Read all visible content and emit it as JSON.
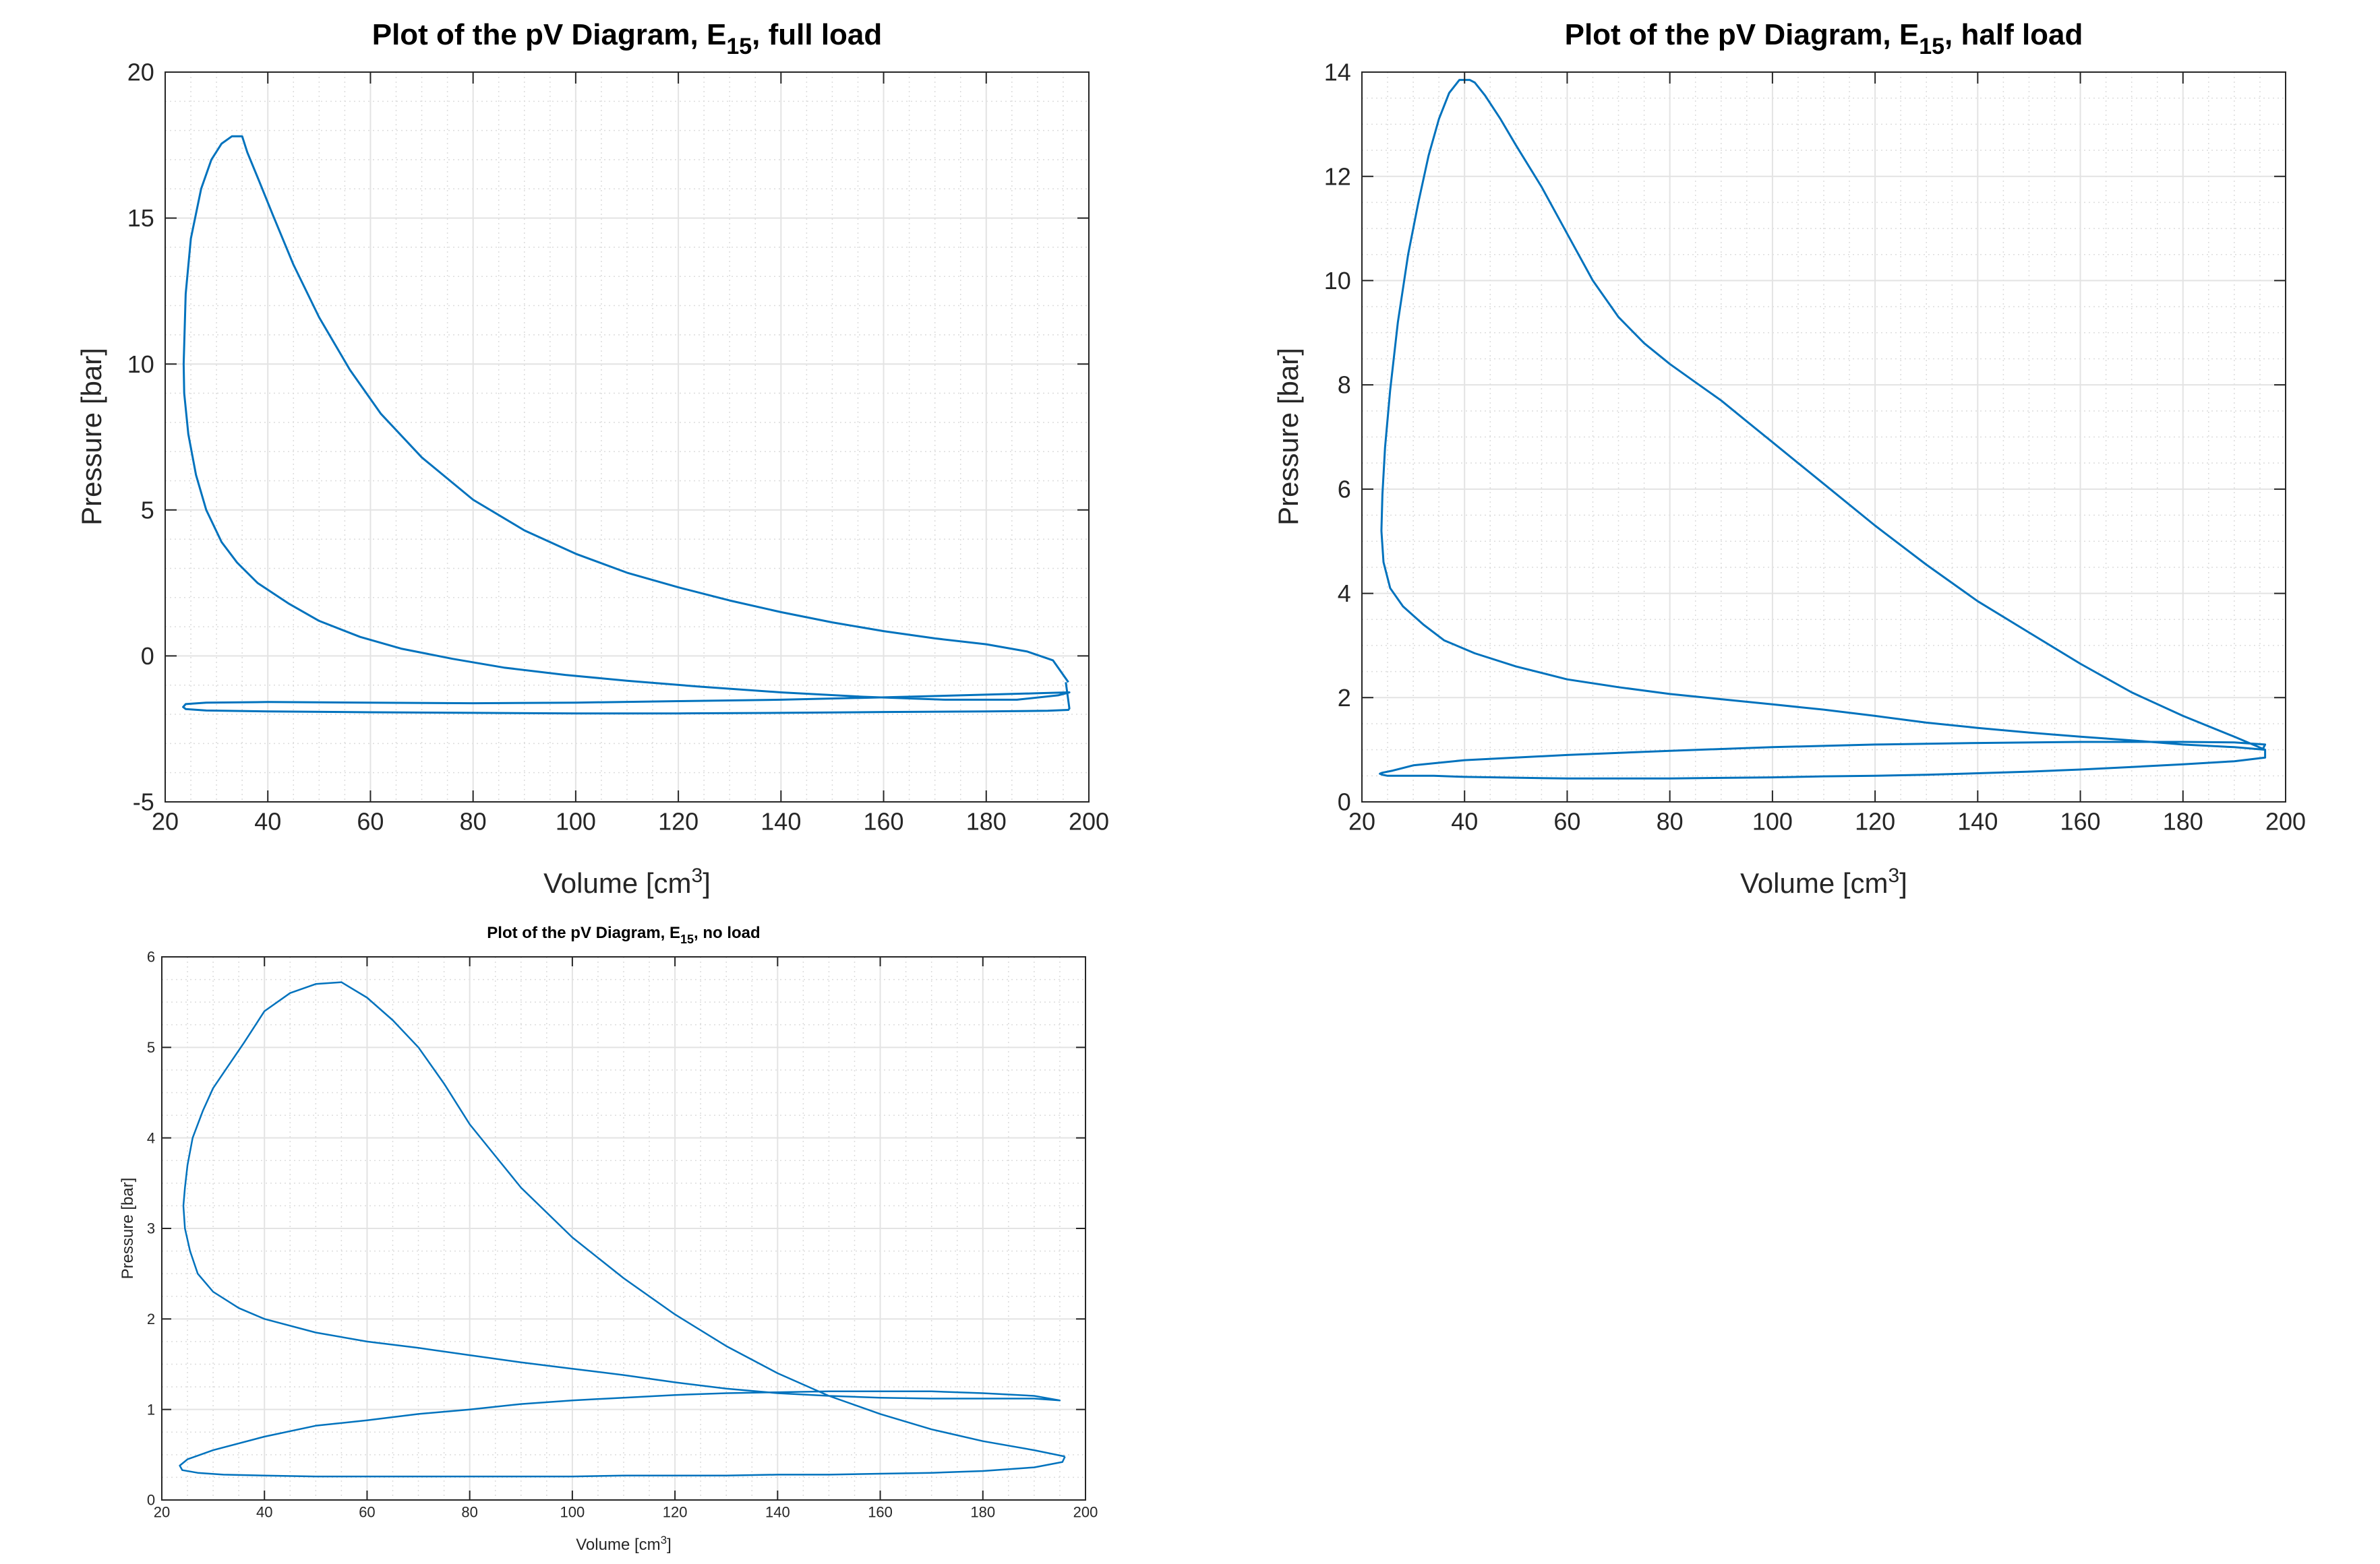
{
  "chart_data": [
    {
      "type": "line",
      "title": "Plot of the pV Diagram, E",
      "title_sub": "15",
      "title_suffix": ", full load",
      "xlabel": "Volume [cm",
      "xlabel_sup": "3",
      "xlabel_suffix": "]",
      "ylabel": "Pressure [bar]",
      "xlim": [
        20,
        200
      ],
      "ylim": [
        -5,
        20
      ],
      "xticks": [
        20,
        40,
        60,
        80,
        100,
        120,
        140,
        160,
        180,
        200
      ],
      "yticks": [
        -5,
        0,
        5,
        10,
        15,
        20
      ],
      "xminor": 5,
      "yminor": 1,
      "grid": true,
      "series": [
        {
          "color": "#0072bd",
          "x": [
            196,
            193,
            188,
            180,
            170,
            160,
            150,
            140,
            130,
            120,
            110,
            100,
            90,
            80,
            70,
            62,
            56,
            50,
            45,
            41,
            38,
            36,
            35,
            33,
            31,
            29,
            27,
            25,
            24,
            23.6,
            23.7,
            24.5,
            26,
            28,
            31,
            34,
            38,
            44,
            50,
            58,
            66,
            76,
            86,
            98,
            110,
            124,
            140,
            156,
            172,
            186,
            194,
            196.2,
            196,
            190,
            175,
            160,
            140,
            120,
            100,
            80,
            60,
            40,
            28,
            24,
            23.5,
            24,
            28,
            40,
            60,
            80,
            100,
            120,
            140,
            160,
            180,
            192,
            196,
            196.2,
            195.5
          ],
          "y": [
            -0.9,
            -0.15,
            0.15,
            0.4,
            0.6,
            0.85,
            1.15,
            1.5,
            1.9,
            2.35,
            2.85,
            3.5,
            4.3,
            5.35,
            6.8,
            8.3,
            9.8,
            11.6,
            13.4,
            15.1,
            16.4,
            17.25,
            17.8,
            17.8,
            17.55,
            17.0,
            16.0,
            14.3,
            12.4,
            10.0,
            9.0,
            7.6,
            6.2,
            5.0,
            3.9,
            3.2,
            2.5,
            1.8,
            1.2,
            0.65,
            0.25,
            -0.1,
            -0.4,
            -0.65,
            -0.85,
            -1.05,
            -1.25,
            -1.4,
            -1.5,
            -1.5,
            -1.35,
            -1.25,
            -1.25,
            -1.28,
            -1.35,
            -1.42,
            -1.5,
            -1.55,
            -1.6,
            -1.62,
            -1.6,
            -1.58,
            -1.6,
            -1.65,
            -1.75,
            -1.82,
            -1.87,
            -1.9,
            -1.93,
            -1.95,
            -1.97,
            -1.97,
            -1.95,
            -1.92,
            -1.9,
            -1.88,
            -1.85,
            -1.8,
            -0.9
          ]
        }
      ]
    },
    {
      "type": "line",
      "title": "Plot of the pV Diagram, E",
      "title_sub": "15",
      "title_suffix": ", half load",
      "xlabel": "Volume [cm",
      "xlabel_sup": "3",
      "xlabel_suffix": "]",
      "ylabel": "Pressure [bar]",
      "xlim": [
        20,
        200
      ],
      "ylim": [
        0,
        14
      ],
      "xticks": [
        20,
        40,
        60,
        80,
        100,
        120,
        140,
        160,
        180,
        200
      ],
      "yticks": [
        0,
        2,
        4,
        6,
        8,
        10,
        12,
        14
      ],
      "xminor": 5,
      "yminor": 0.5,
      "grid": true,
      "series": [
        {
          "color": "#0072bd",
          "x": [
            196,
            190,
            180,
            170,
            160,
            150,
            140,
            130,
            120,
            110,
            100,
            95,
            90,
            85,
            80,
            75,
            70,
            65,
            60,
            55,
            50,
            47,
            44,
            42,
            41,
            39,
            37,
            35,
            33,
            31,
            29,
            27,
            25.5,
            24.5,
            24,
            23.8,
            24.2,
            25.5,
            28,
            32,
            36,
            42,
            50,
            60,
            70,
            80,
            90,
            100,
            110,
            120,
            130,
            140,
            150,
            160,
            170,
            180,
            190,
            196,
            196,
            190,
            180,
            170,
            160,
            150,
            140,
            130,
            120,
            110,
            100,
            90,
            80,
            70,
            60,
            52,
            46,
            40,
            34,
            30,
            27,
            25,
            24,
            23.5,
            24,
            26,
            30,
            40,
            60,
            80,
            100,
            120,
            140,
            160,
            180,
            190,
            196,
            195.5
          ],
          "y": [
            1.0,
            1.25,
            1.65,
            2.1,
            2.65,
            3.25,
            3.85,
            4.55,
            5.3,
            6.1,
            6.9,
            7.3,
            7.7,
            8.05,
            8.4,
            8.8,
            9.3,
            10.0,
            10.9,
            11.8,
            12.6,
            13.1,
            13.55,
            13.8,
            13.85,
            13.85,
            13.6,
            13.1,
            12.4,
            11.5,
            10.5,
            9.2,
            7.9,
            6.8,
            5.9,
            5.2,
            4.6,
            4.1,
            3.75,
            3.4,
            3.1,
            2.85,
            2.6,
            2.35,
            2.2,
            2.07,
            1.97,
            1.87,
            1.77,
            1.65,
            1.52,
            1.42,
            1.33,
            1.25,
            1.18,
            1.1,
            1.05,
            1.0,
            0.85,
            0.78,
            0.72,
            0.67,
            0.62,
            0.58,
            0.55,
            0.52,
            0.5,
            0.49,
            0.47,
            0.46,
            0.45,
            0.45,
            0.45,
            0.46,
            0.47,
            0.48,
            0.5,
            0.5,
            0.5,
            0.5,
            0.52,
            0.54,
            0.56,
            0.6,
            0.7,
            0.8,
            0.9,
            0.98,
            1.05,
            1.1,
            1.13,
            1.15,
            1.15,
            1.14,
            1.1,
            1.0
          ]
        }
      ]
    },
    {
      "type": "line",
      "title": "Plot of the pV Diagram, E",
      "title_sub": "15",
      "title_suffix": ", no load",
      "xlabel": "Volume [cm",
      "xlabel_sup": "3",
      "xlabel_suffix": "]",
      "ylabel": "Pressure [bar]",
      "xlim": [
        20,
        200
      ],
      "ylim": [
        0,
        6
      ],
      "xticks": [
        20,
        40,
        60,
        80,
        100,
        120,
        140,
        160,
        180,
        200
      ],
      "yticks": [
        0,
        1,
        2,
        3,
        4,
        5,
        6
      ],
      "xminor": 5,
      "yminor": 0.25,
      "grid": true,
      "series": [
        {
          "color": "#0072bd",
          "x": [
            196,
            190,
            180,
            170,
            160,
            150,
            140,
            130,
            120,
            110,
            100,
            90,
            85,
            80,
            75,
            70,
            65,
            60,
            55,
            50,
            45,
            40,
            36,
            33,
            30,
            28,
            26,
            25,
            24.5,
            24.2,
            24.5,
            25.5,
            27,
            30,
            35,
            40,
            50,
            60,
            70,
            80,
            90,
            100,
            110,
            120,
            130,
            140,
            150,
            160,
            170,
            180,
            190,
            195,
            195,
            190,
            180,
            170,
            160,
            150,
            140,
            130,
            120,
            110,
            100,
            90,
            80,
            70,
            60,
            50,
            40,
            30,
            25,
            23.5,
            24,
            27,
            32,
            40,
            50,
            60,
            70,
            80,
            90,
            100,
            110,
            120,
            130,
            140,
            150,
            160,
            170,
            180,
            190,
            195.5,
            196
          ],
          "y": [
            0.48,
            0.55,
            0.65,
            0.78,
            0.95,
            1.15,
            1.4,
            1.7,
            2.05,
            2.45,
            2.9,
            3.45,
            3.8,
            4.15,
            4.6,
            5.0,
            5.3,
            5.55,
            5.72,
            5.7,
            5.6,
            5.4,
            5.05,
            4.8,
            4.55,
            4.3,
            4.0,
            3.7,
            3.45,
            3.25,
            3.0,
            2.75,
            2.5,
            2.3,
            2.12,
            2.0,
            1.85,
            1.75,
            1.68,
            1.6,
            1.52,
            1.45,
            1.38,
            1.3,
            1.23,
            1.18,
            1.15,
            1.13,
            1.12,
            1.12,
            1.12,
            1.1,
            1.1,
            1.15,
            1.18,
            1.2,
            1.2,
            1.2,
            1.19,
            1.18,
            1.16,
            1.13,
            1.1,
            1.06,
            1.0,
            0.95,
            0.88,
            0.82,
            0.7,
            0.55,
            0.45,
            0.38,
            0.33,
            0.3,
            0.28,
            0.27,
            0.26,
            0.26,
            0.26,
            0.26,
            0.26,
            0.26,
            0.27,
            0.27,
            0.27,
            0.28,
            0.28,
            0.29,
            0.3,
            0.32,
            0.36,
            0.42,
            0.48
          ]
        }
      ]
    }
  ]
}
